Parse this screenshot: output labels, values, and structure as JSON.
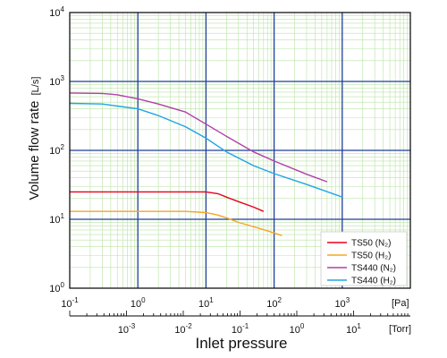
{
  "chart_data": {
    "type": "line",
    "xlabel": "Inlet pressure",
    "ylabel": "Volume flow rate",
    "ylabel_unit": "[L/s]",
    "x_unit_top": "[Pa]",
    "x_unit_bottom": "[Torr]",
    "x_scale": "log",
    "y_scale": "log",
    "xlim_pa": [
      0.1,
      10000
    ],
    "xlim_torr": [
      0.0001,
      100
    ],
    "ylim": [
      1,
      10000
    ],
    "grid": true,
    "legend_position": "bottom-right",
    "x_ticks_pa": [
      {
        "base": "10",
        "exp": "-1"
      },
      {
        "base": "10",
        "exp": "0"
      },
      {
        "base": "10",
        "exp": "1"
      },
      {
        "base": "10",
        "exp": "2"
      },
      {
        "base": "10",
        "exp": "3"
      }
    ],
    "x_ticks_torr": [
      {
        "base": "10",
        "exp": "-3"
      },
      {
        "base": "10",
        "exp": "-2"
      },
      {
        "base": "10",
        "exp": "-1"
      },
      {
        "base": "10",
        "exp": "0"
      },
      {
        "base": "10",
        "exp": "1"
      }
    ],
    "y_ticks": [
      {
        "base": "10",
        "exp": "0"
      },
      {
        "base": "10",
        "exp": "1"
      },
      {
        "base": "10",
        "exp": "2"
      },
      {
        "base": "10",
        "exp": "3"
      },
      {
        "base": "10",
        "exp": "4"
      }
    ],
    "series": [
      {
        "name": "TS50 (N₂)",
        "color": "#e8001c",
        "x": [
          0.1,
          0.5,
          1,
          5,
          10,
          15,
          20,
          30,
          50,
          70
        ],
        "y": [
          25,
          25,
          25,
          25,
          25,
          23.5,
          21,
          18,
          15,
          13
        ]
      },
      {
        "name": "TS50 (H₂)",
        "color": "#f5a623",
        "x": [
          0.1,
          0.5,
          1,
          5,
          10,
          15,
          20,
          30,
          50,
          80,
          130
        ],
        "y": [
          13,
          13,
          13,
          13,
          12.5,
          11.5,
          10.5,
          9,
          7.8,
          6.8,
          5.8
        ]
      },
      {
        "name": "TS440 (N₂)",
        "color": "#b040a8",
        "x": [
          0.1,
          0.3,
          0.5,
          1,
          2,
          5,
          10,
          20,
          50,
          100,
          300,
          600
        ],
        "y": [
          680,
          670,
          640,
          560,
          470,
          360,
          240,
          160,
          95,
          70,
          45,
          35
        ]
      },
      {
        "name": "TS440 (H₂)",
        "color": "#1ea5e6",
        "x": [
          0.1,
          0.3,
          0.5,
          1,
          2,
          5,
          10,
          20,
          50,
          100,
          300,
          1000
        ],
        "y": [
          480,
          470,
          440,
          400,
          320,
          220,
          150,
          95,
          60,
          46,
          32,
          21
        ]
      }
    ]
  }
}
